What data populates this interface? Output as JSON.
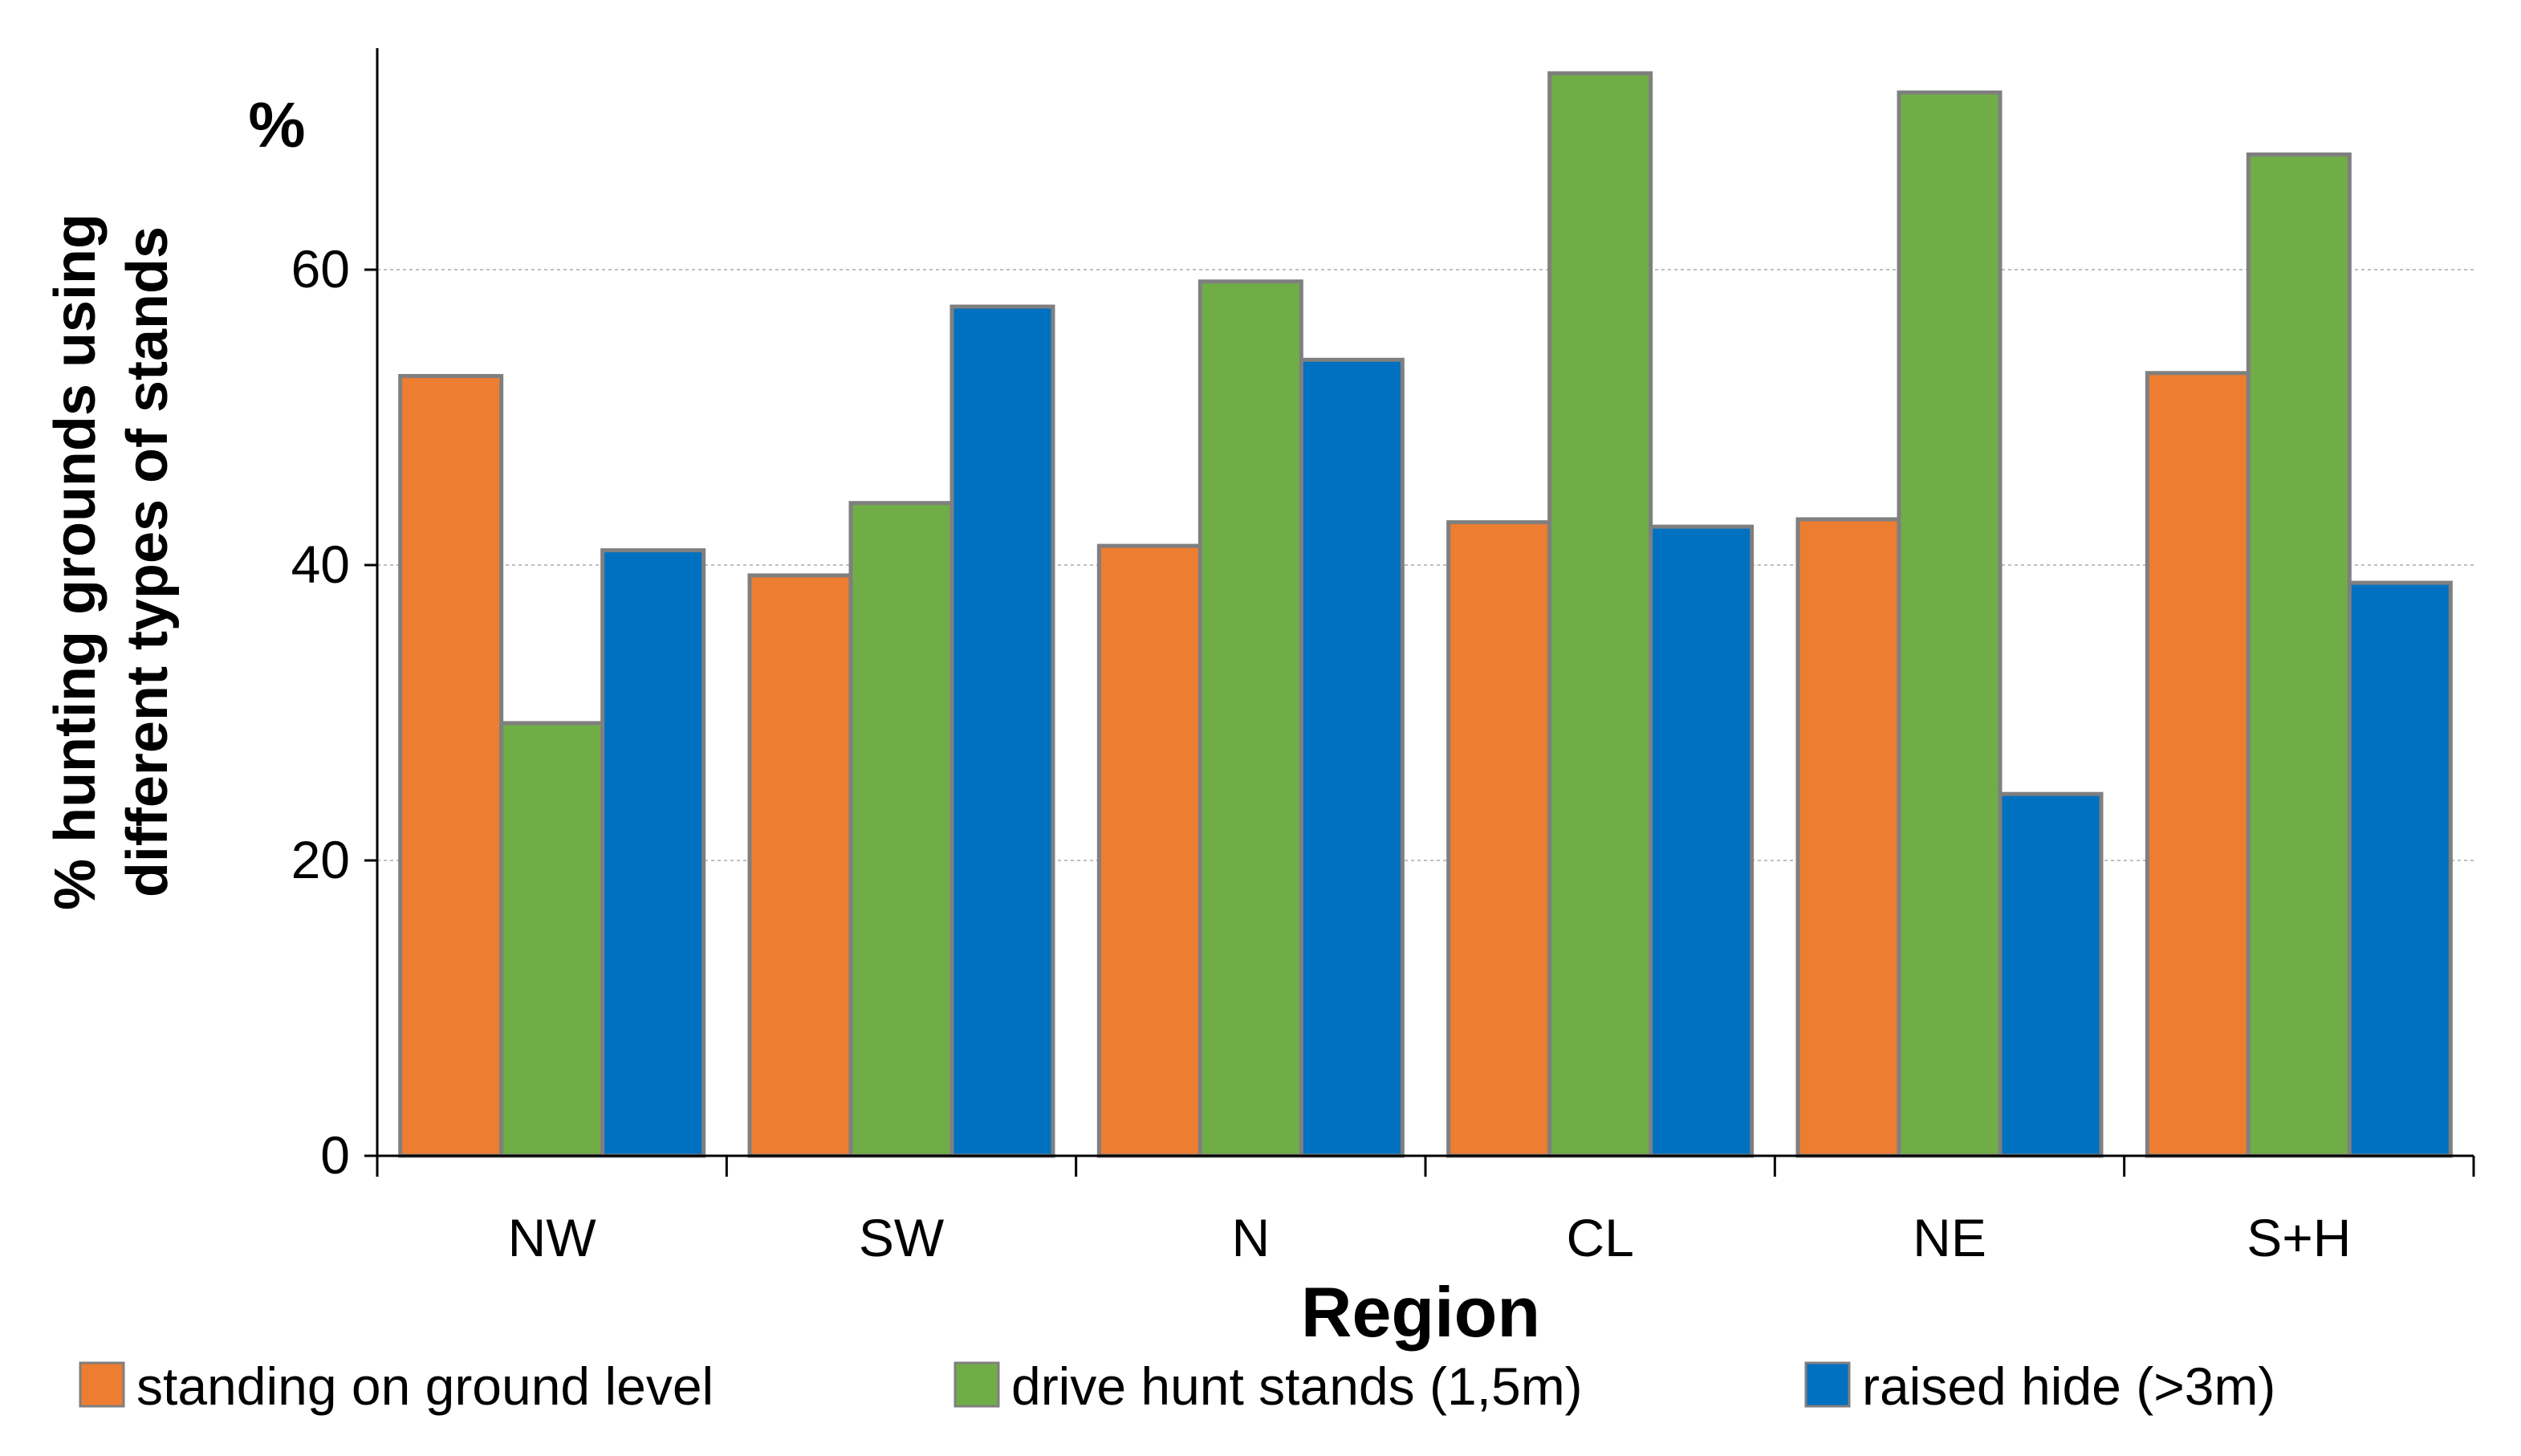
{
  "chart_data": {
    "type": "bar",
    "title": "",
    "xlabel": "Region",
    "ylabel_line1": "% hunting grounds using",
    "ylabel_line2": "different types of stands",
    "y_unit_label": "%",
    "ylim": [
      0,
      75
    ],
    "yticks": [
      0,
      20,
      40,
      60
    ],
    "grid": true,
    "legend_position": "bottom",
    "categories": [
      "NW",
      "SW",
      "N",
      "CL",
      "NE",
      "S+H"
    ],
    "series": [
      {
        "name": "standing on ground level",
        "color": "#ED7D31",
        "values": [
          52.8,
          39.3,
          41.3,
          42.9,
          43.1,
          53.0
        ]
      },
      {
        "name": "drive hunt stands (1,5m)",
        "color": "#70AD47",
        "values": [
          29.3,
          44.2,
          59.2,
          73.3,
          72.0,
          67.8
        ]
      },
      {
        "name": "raised hide (>3m)",
        "color": "#0070C0",
        "values": [
          41.0,
          57.5,
          53.9,
          42.6,
          24.5,
          38.8
        ]
      }
    ],
    "bar_edge_color": "#7F7F7F",
    "grid_color": "#BFBFBF",
    "axis_color": "#000000"
  }
}
